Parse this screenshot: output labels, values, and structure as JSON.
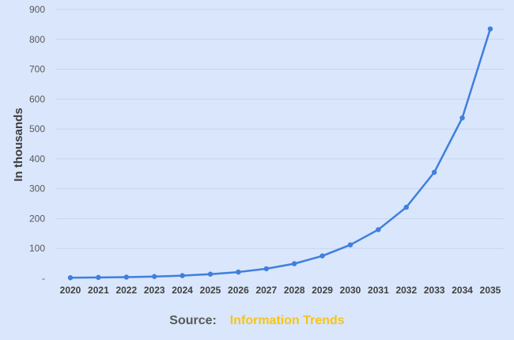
{
  "chart_data": {
    "type": "line",
    "title": "",
    "xlabel": "",
    "ylabel": "In thousands",
    "categories": [
      "2020",
      "2021",
      "2022",
      "2023",
      "2024",
      "2025",
      "2026",
      "2027",
      "2028",
      "2029",
      "2030",
      "2031",
      "2032",
      "2033",
      "2034",
      "2035"
    ],
    "series": [
      {
        "values": [
          2,
          3,
          4,
          6,
          9,
          14,
          21,
          32,
          49,
          75,
          112,
          163,
          238,
          355,
          537,
          835
        ],
        "color": "#3f7fde"
      }
    ],
    "ylim": [
      0,
      900
    ],
    "yticks": [
      0,
      100,
      200,
      300,
      400,
      500,
      600,
      700,
      800,
      900
    ],
    "ytick_labels": [
      "-",
      "100",
      "200",
      "300",
      "400",
      "500",
      "600",
      "700",
      "800",
      "900"
    ],
    "grid": true,
    "legend": "none"
  },
  "source": {
    "label": "Source:",
    "value": "Information Trends"
  },
  "colors": {
    "background": "#d9e6fb",
    "line": "#3f7fde",
    "grid": "#c8d6ec",
    "source_value": "#f5c518"
  }
}
